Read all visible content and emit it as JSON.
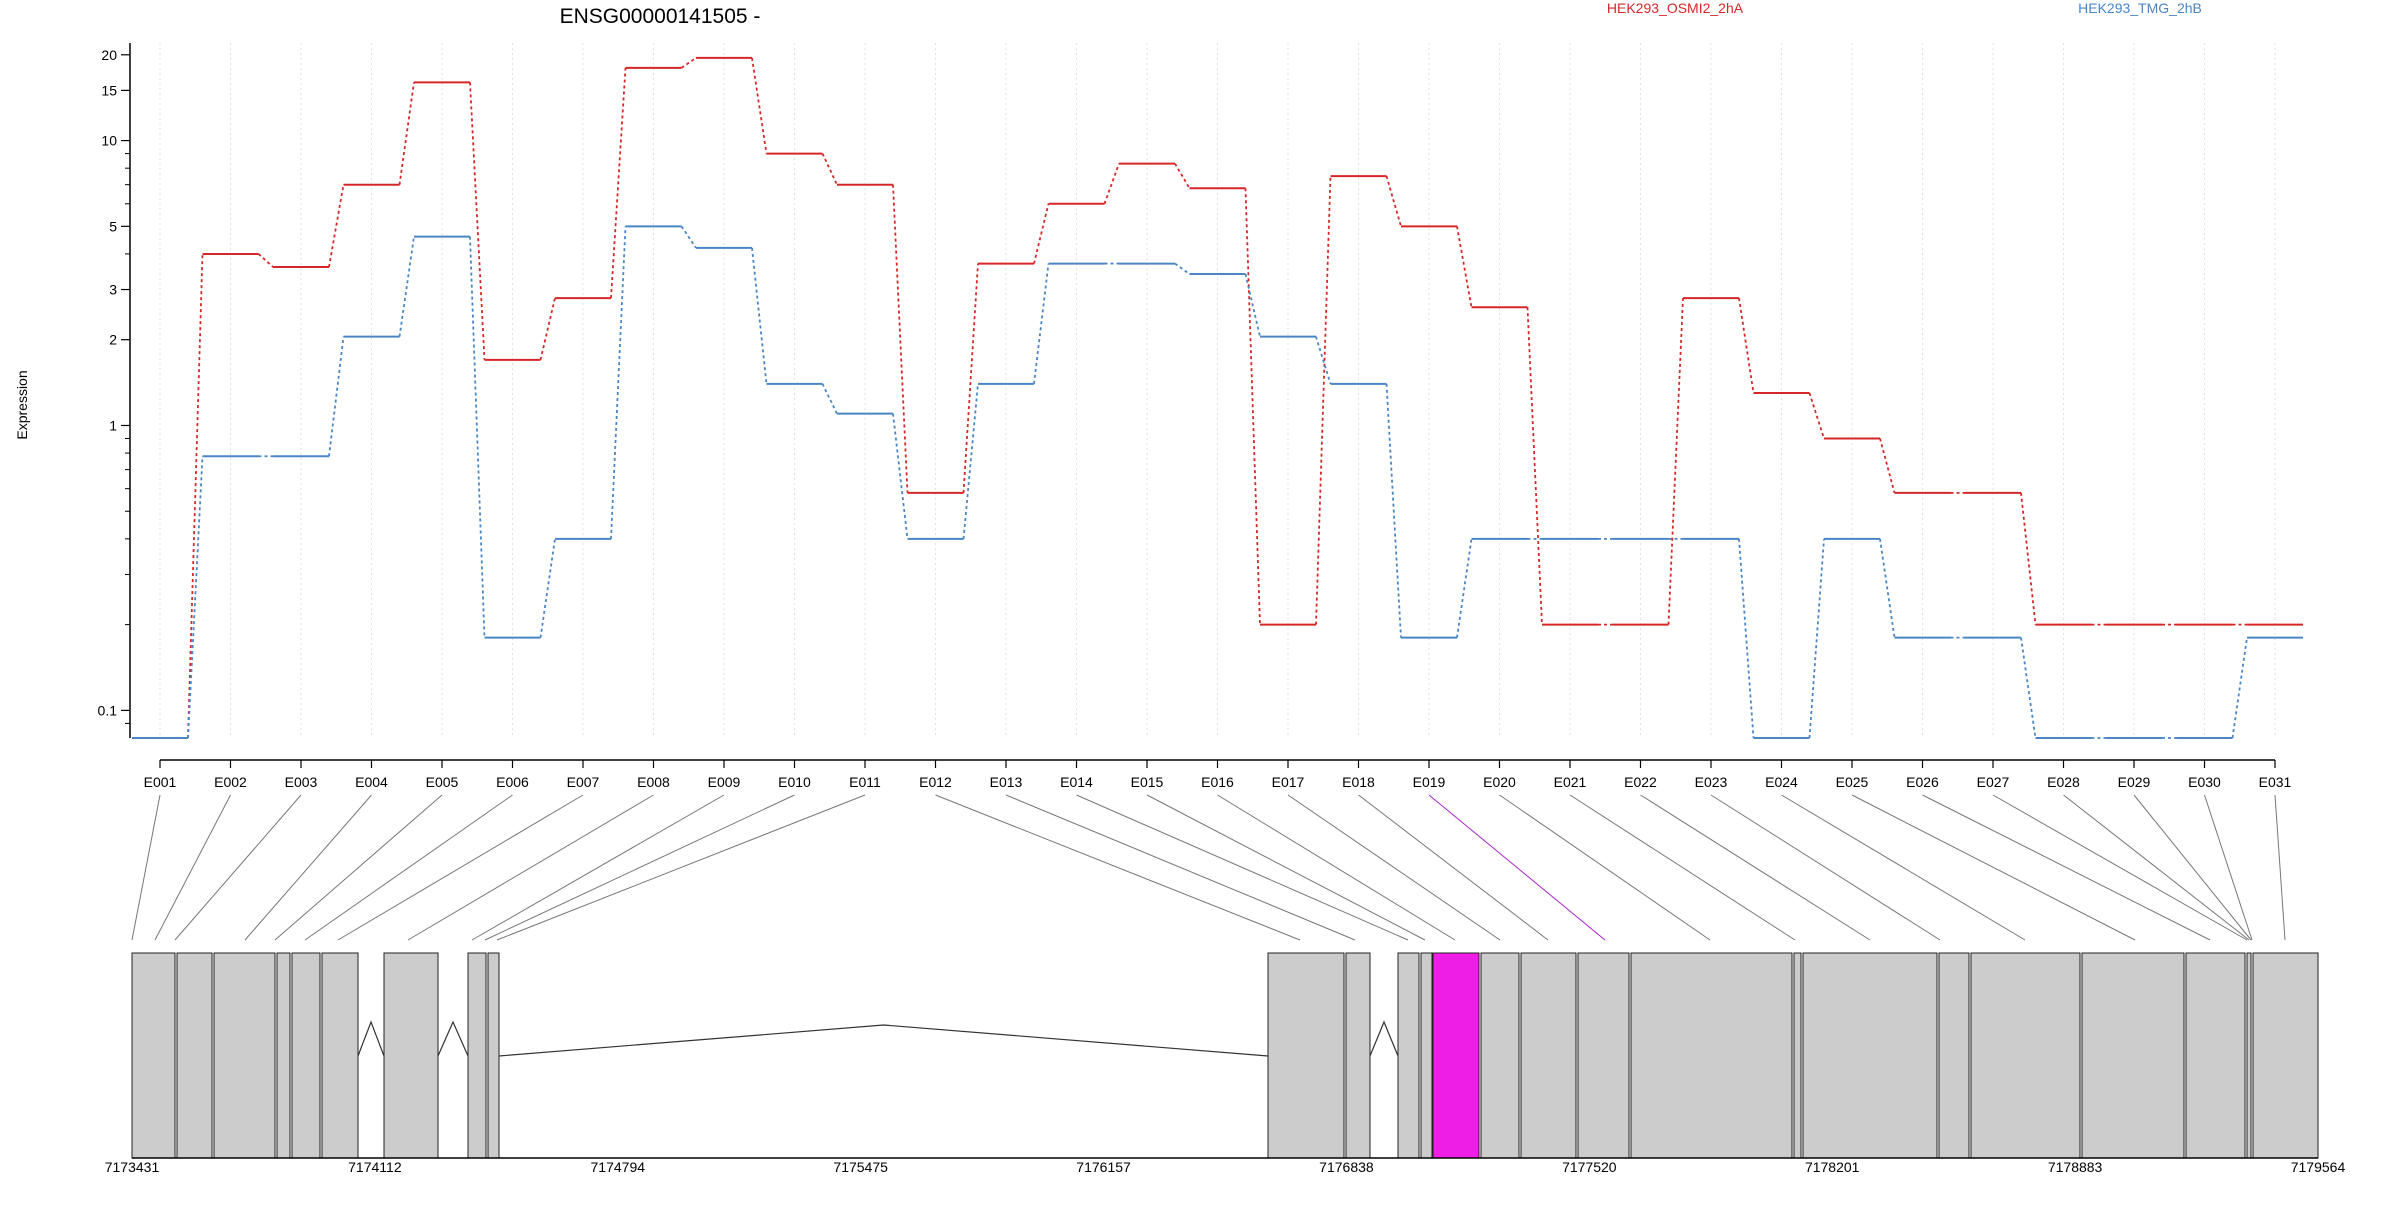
{
  "chart_data": {
    "type": "line",
    "title": "ENSG00000141505 -",
    "ylabel": "Expression",
    "xlabel": "",
    "y_scale": "log",
    "ylim": [
      0.08,
      22
    ],
    "yticks": [
      0.1,
      1,
      2,
      3,
      5,
      10,
      15,
      20
    ],
    "grid": "vertical dotted at each exon",
    "legend_position": "top",
    "categories": [
      "E001",
      "E002",
      "E003",
      "E004",
      "E005",
      "E006",
      "E007",
      "E008",
      "E009",
      "E010",
      "E011",
      "E012",
      "E013",
      "E014",
      "E015",
      "E016",
      "E017",
      "E018",
      "E019",
      "E020",
      "E021",
      "E022",
      "E023",
      "E024",
      "E025",
      "E026",
      "E027",
      "E028",
      "E029",
      "E030",
      "E031"
    ],
    "series": [
      {
        "name": "HEK293_OSMI2_2hA",
        "color": "#d62728",
        "values": [
          0.08,
          4.0,
          3.6,
          7.0,
          16.0,
          1.7,
          2.8,
          18.0,
          19.5,
          9.0,
          7.0,
          0.58,
          3.7,
          6.0,
          8.3,
          6.8,
          0.2,
          7.5,
          5.0,
          2.6,
          0.2,
          0.2,
          2.8,
          1.3,
          0.9,
          0.58,
          0.58,
          0.2,
          0.2,
          0.2,
          0.2
        ]
      },
      {
        "name": "HEK293_TMG_2hB",
        "color": "#4a86c5",
        "values": [
          0.08,
          0.78,
          0.78,
          2.05,
          4.6,
          0.18,
          0.4,
          5.0,
          4.2,
          1.4,
          1.1,
          0.4,
          1.4,
          3.7,
          3.7,
          3.4,
          2.05,
          1.4,
          0.18,
          0.4,
          0.4,
          0.4,
          0.4,
          0.08,
          0.4,
          0.18,
          0.18,
          0.08,
          0.08,
          0.08,
          0.18
        ]
      }
    ],
    "highlight_exon": "E019",
    "gene_model": {
      "coord_ticks": [
        "7173431",
        "7174112",
        "7174794",
        "7175475",
        "7176157",
        "7176838",
        "7177520",
        "7178201",
        "7178883",
        "7179564"
      ],
      "highlight_color": "#ee1ee6",
      "exon_fill": "#cccccc"
    }
  }
}
